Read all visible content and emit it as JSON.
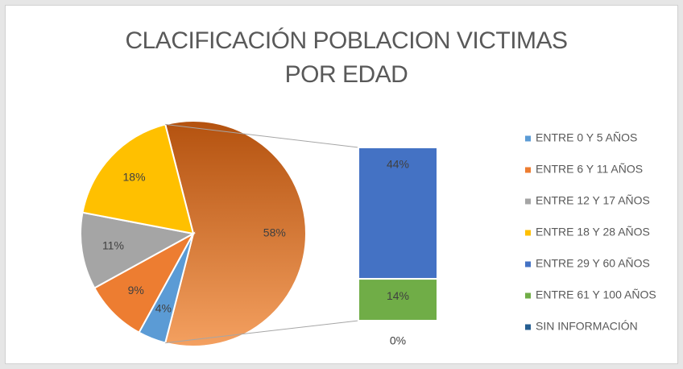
{
  "chart_data": {
    "type": "bar_of_pie",
    "title": "CLACIFICACIÓN POBLACION VICTIMAS POR EDAD",
    "categories": [
      "ENTRE 0 Y 5 AÑOS",
      "ENTRE 6 Y 11 AÑOS",
      "ENTRE 12 Y 17 AÑOS",
      "ENTRE 18 Y 28 AÑOS",
      "ENTRE 29 Y 60 AÑOS",
      "ENTRE 61 Y 100 AÑOS",
      "SIN INFORMACIÓN"
    ],
    "values": [
      4,
      9,
      11,
      18,
      44,
      14,
      0
    ],
    "value_labels": [
      "4%",
      "9%",
      "11%",
      "18%",
      "44%",
      "14%",
      "0%"
    ],
    "colors": [
      "#5b9bd5",
      "#ed7d31",
      "#a5a5a5",
      "#ffc000",
      "#4472c4",
      "#70ad47",
      "#255e91"
    ],
    "split_index": 4,
    "other_value": 58,
    "other_label": "58%",
    "other_color": "#e07a2f",
    "legend": "right"
  }
}
